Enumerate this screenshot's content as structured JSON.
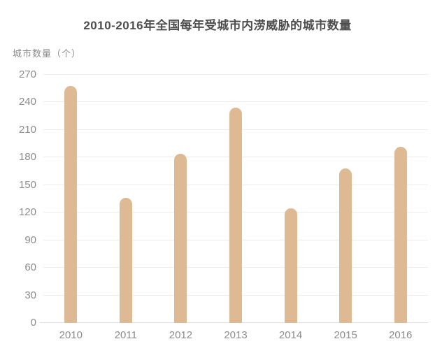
{
  "page": {
    "background": "#ffffff"
  },
  "chart_data": {
    "type": "bar",
    "title": "2010-2016年全国每年受城市内涝威胁的城市数量",
    "ylabel": "城市数量（个）",
    "xlabel": "",
    "categories": [
      "2010",
      "2011",
      "2012",
      "2013",
      "2014",
      "2015",
      "2016"
    ],
    "values": [
      258,
      136,
      184,
      234,
      125,
      168,
      192
    ],
    "yticks": [
      0,
      30,
      60,
      90,
      120,
      150,
      180,
      210,
      240,
      270
    ],
    "ylim": [
      0,
      270
    ],
    "grid": true,
    "legend_position": "none",
    "colors": {
      "bar": "#ddba94",
      "grid": "#ececec",
      "axis_line": "#e0e0e0",
      "tick_label": "#8c8c8c",
      "title": "#4d4d4d",
      "background": "#ffffff"
    }
  }
}
